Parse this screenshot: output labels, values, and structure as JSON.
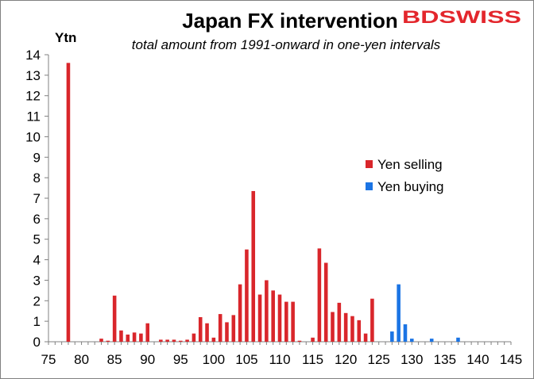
{
  "logo": {
    "text": "BDSWISS",
    "color": "#e3262c"
  },
  "chart_data": {
    "type": "bar",
    "title": "Japan FX intervention",
    "subtitle": "total amount from 1991-onward in one-yen intervals",
    "xlabel": "",
    "ylabel": "Ytn",
    "xlim": [
      75,
      145
    ],
    "ylim": [
      0,
      14
    ],
    "x_ticks": [
      75,
      80,
      85,
      90,
      95,
      100,
      105,
      110,
      115,
      120,
      125,
      130,
      135,
      140,
      145
    ],
    "y_ticks": [
      0,
      1,
      2,
      3,
      4,
      5,
      6,
      7,
      8,
      9,
      10,
      11,
      12,
      13,
      14
    ],
    "grid": false,
    "legend_position": "center-right",
    "series": [
      {
        "name": "Yen selling",
        "color": "#d9262b",
        "points": [
          [
            78,
            13.6
          ],
          [
            83,
            0.15
          ],
          [
            84,
            0.05
          ],
          [
            85,
            2.25
          ],
          [
            86,
            0.55
          ],
          [
            87,
            0.35
          ],
          [
            88,
            0.45
          ],
          [
            89,
            0.4
          ],
          [
            90,
            0.9
          ],
          [
            92,
            0.1
          ],
          [
            93,
            0.1
          ],
          [
            94,
            0.1
          ],
          [
            95,
            0.05
          ],
          [
            96,
            0.1
          ],
          [
            97,
            0.4
          ],
          [
            98,
            1.2
          ],
          [
            99,
            0.9
          ],
          [
            100,
            0.2
          ],
          [
            101,
            1.35
          ],
          [
            102,
            0.95
          ],
          [
            103,
            1.3
          ],
          [
            104,
            2.8
          ],
          [
            105,
            4.5
          ],
          [
            106,
            7.35
          ],
          [
            107,
            2.3
          ],
          [
            108,
            3.0
          ],
          [
            109,
            2.5
          ],
          [
            110,
            2.3
          ],
          [
            111,
            1.95
          ],
          [
            112,
            1.95
          ],
          [
            113,
            0.05
          ],
          [
            115,
            0.2
          ],
          [
            116,
            4.55
          ],
          [
            117,
            3.85
          ],
          [
            118,
            1.45
          ],
          [
            119,
            1.9
          ],
          [
            120,
            1.4
          ],
          [
            121,
            1.25
          ],
          [
            122,
            1.05
          ],
          [
            123,
            0.4
          ],
          [
            124,
            2.1
          ]
        ]
      },
      {
        "name": "Yen buying",
        "color": "#1b74e4",
        "points": [
          [
            127,
            0.5
          ],
          [
            128,
            2.8
          ],
          [
            129,
            0.85
          ],
          [
            130,
            0.15
          ],
          [
            133,
            0.15
          ],
          [
            137,
            0.2
          ]
        ]
      }
    ]
  }
}
